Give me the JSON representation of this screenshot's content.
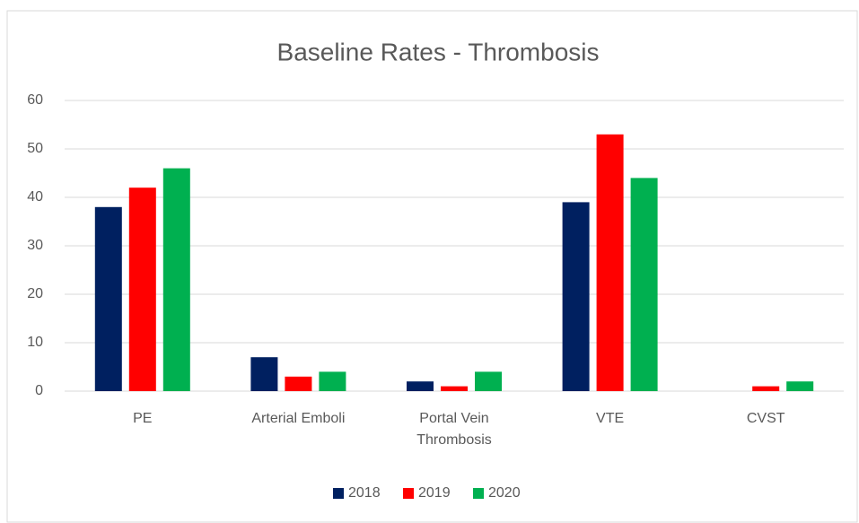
{
  "chart_data": {
    "type": "bar",
    "title": "Baseline Rates - Thrombosis",
    "categories": [
      "PE",
      "Arterial Emboli",
      "Portal Vein Thrombosis",
      "VTE",
      "CVST"
    ],
    "series": [
      {
        "name": "2018",
        "color": "#002060",
        "values": [
          38,
          7,
          2,
          39,
          0
        ]
      },
      {
        "name": "2019",
        "color": "#ff0000",
        "values": [
          42,
          3,
          1,
          53,
          1
        ]
      },
      {
        "name": "2020",
        "color": "#00b050",
        "values": [
          46,
          4,
          4,
          44,
          2
        ]
      }
    ],
    "ylim": [
      0,
      60
    ],
    "yticks": [
      0,
      10,
      20,
      30,
      40,
      50,
      60
    ],
    "grid": true,
    "legend": "bottom"
  }
}
